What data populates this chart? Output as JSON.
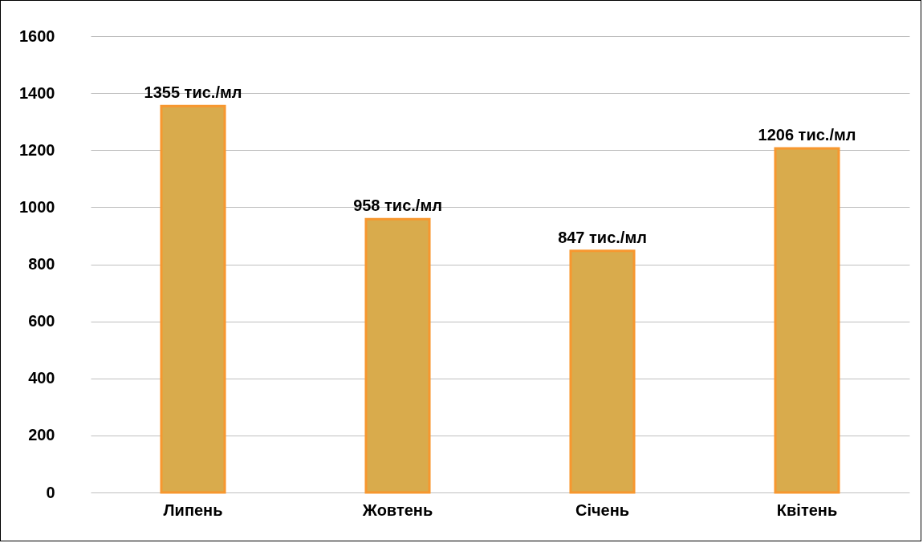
{
  "chart_data": {
    "type": "bar",
    "categories": [
      "Липень",
      "Жовтень",
      "Січень",
      "Квітень"
    ],
    "values": [
      1355,
      958,
      847,
      1206
    ],
    "color": "#d9ab4c",
    "value_labels": [
      "1355 тис./мл",
      "958 тис./мл",
      "847 тис./мл",
      "1206 тис./мл"
    ],
    "ylim": [
      0,
      1600
    ],
    "yticks": [
      0,
      200,
      400,
      600,
      800,
      1000,
      1200,
      1400,
      1600
    ],
    "grid": "y"
  }
}
